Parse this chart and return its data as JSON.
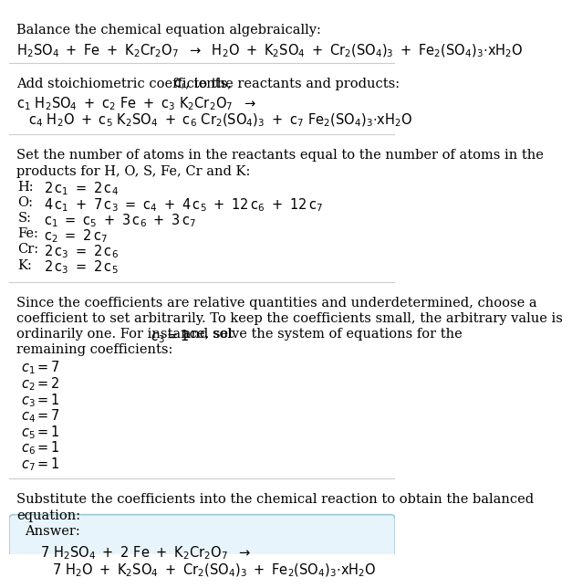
{
  "bg_color": "#ffffff",
  "text_color": "#000000",
  "answer_box_color": "#e8f4fb",
  "answer_box_border": "#a0c8d8",
  "lm": 0.02,
  "fs": 10.5,
  "lh": 0.023,
  "title": "Balance the chemical equation algebraically:",
  "eq1": "$\\rm{H_2SO_4\\ +\\ Fe\\ +\\ K_2Cr_2O_7\\ \\ \\rightarrow\\ \\ H_2O\\ +\\ K_2SO_4\\ +\\ Cr_2(SO_4)_3\\ +\\ Fe_2(SO_4)_3{\\cdot}xH_2O}$",
  "add_stoich_prefix": "Add stoichiometric coefficients, ",
  "add_stoich_suffix": ", to the reactants and products:",
  "eq2a": "$\\rm{c_1\\ H_2SO_4\\ +\\ c_2\\ Fe\\ +\\ c_3\\ K_2Cr_2O_7\\ \\ \\rightarrow}$",
  "eq2b": "$\\rm{c_4\\ H_2O\\ +\\ c_5\\ K_2SO_4\\ +\\ c_6\\ Cr_2(SO_4)_3\\ +\\ c_7\\ Fe_2(SO_4)_3{\\cdot}xH_2O}$",
  "set_atoms_line1": "Set the number of atoms in the reactants equal to the number of atoms in the",
  "set_atoms_line2": "products for H, O, S, Fe, Cr and K:",
  "atom_eqs": [
    {
      "label": "H:",
      "eq": "$\\rm{2\\,c_1\\ =\\ 2\\,c_4}$"
    },
    {
      "label": "O:",
      "eq": "$\\rm{4\\,c_1\\ +\\ 7\\,c_3\\ =\\ c_4\\ +\\ 4\\,c_5\\ +\\ 12\\,c_6\\ +\\ 12\\,c_7}$"
    },
    {
      "label": "S:",
      "eq": "$\\rm{c_1\\ =\\ c_5\\ +\\ 3\\,c_6\\ +\\ 3\\,c_7}$"
    },
    {
      "label": "Fe:",
      "eq": "$\\rm{c_2\\ =\\ 2\\,c_7}$"
    },
    {
      "label": "Cr:",
      "eq": "$\\rm{2\\,c_3\\ =\\ 2\\,c_6}$"
    },
    {
      "label": "K:",
      "eq": "$\\rm{2\\,c_3\\ =\\ 2\\,c_5}$"
    }
  ],
  "since_line1": "Since the coefficients are relative quantities and underdetermined, choose a",
  "since_line2": "coefficient to set arbitrarily. To keep the coefficients small, the arbitrary value is",
  "since_line3_pre": "ordinarily one. For instance, set ",
  "since_line3_math": "$c_3 = 1$",
  "since_line3_post": " and solve the system of equations for the",
  "since_line4": "remaining coefficients:",
  "coeffs": [
    "$c_1 = 7$",
    "$c_2 = 2$",
    "$c_3 = 1$",
    "$c_4 = 7$",
    "$c_5 = 1$",
    "$c_6 = 1$",
    "$c_7 = 1$"
  ],
  "subst_line1": "Substitute the coefficients into the chemical reaction to obtain the balanced",
  "subst_line2": "equation:",
  "answer_label": "Answer:",
  "ans_eq1": "$\\rm{7\\ H_2SO_4\\ +\\ 2\\ Fe\\ +\\ K_2Cr_2O_7\\ \\ \\rightarrow}$",
  "ans_eq2": "$\\rm{7\\ H_2O\\ +\\ K_2SO_4\\ +\\ Cr_2(SO_4)_3\\ +\\ Fe_2(SO_4)_3{\\cdot}xH_2O}$"
}
